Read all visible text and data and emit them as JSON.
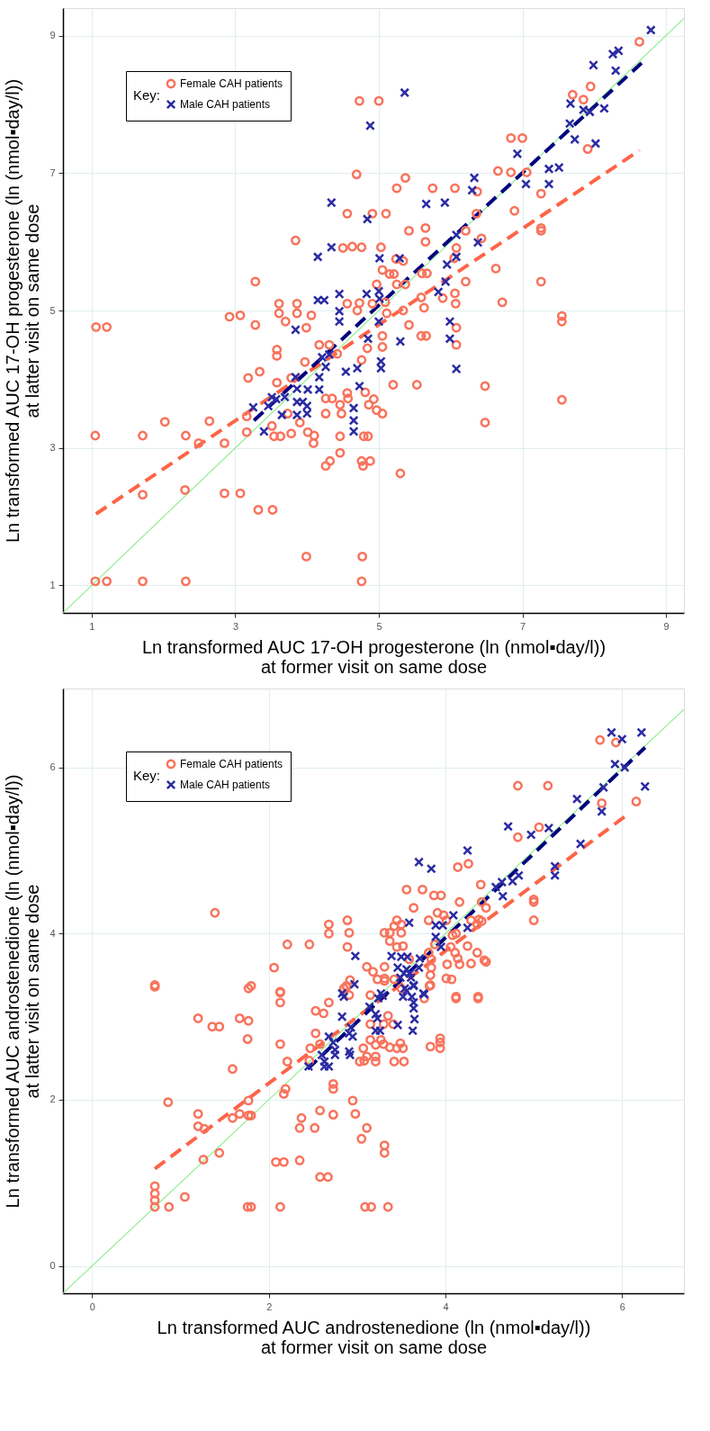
{
  "chart_data": [
    {
      "type": "scatter",
      "xlabel": "Ln transformed AUC 17-OH progesterone (ln (nmol▪day/l))\nat former visit on same dose",
      "ylabel": "Ln transformed AUC 17-OH progesterone (ln (nmol▪day/l))\nat latter visit on same dose",
      "legend_title": "Key:",
      "legend": "top left",
      "grid": true,
      "xlim": [
        0.6,
        9.25
      ],
      "ylim": [
        0.6,
        9.4
      ],
      "xticks": [
        1,
        3,
        5,
        7,
        9
      ],
      "yticks": [
        1,
        3,
        5,
        7,
        9
      ],
      "series": [
        {
          "name": "Female CAH patients",
          "color": "#f8735c",
          "marker": "circle",
          "x": [
            4.73,
            5.0,
            6.84,
            7.0,
            7.7,
            7.85,
            7.95,
            8.63,
            7.91,
            4.69,
            5.37,
            6.66,
            6.84,
            7.06,
            7.26,
            5.25,
            5.75,
            6.06,
            6.37,
            6.36,
            6.89,
            4.56,
            4.91,
            5.1,
            3.84,
            5.42,
            5.65,
            5.65,
            6.21,
            7.26,
            7.26,
            4.5,
            4.63,
            4.76,
            5.03,
            6.08,
            6.43,
            5.24,
            5.34,
            6.05,
            5.05,
            5.15,
            5.21,
            5.6,
            5.67,
            6.63,
            3.28,
            4.97,
            5.25,
            5.37,
            6.21,
            7.26,
            5.59,
            5.89,
            6.06,
            6.07,
            6.72,
            3.61,
            3.86,
            4.56,
            4.73,
            4.91,
            5.09,
            3.61,
            3.86,
            4.06,
            4.7,
            5.34,
            5.63,
            7.55,
            2.92,
            3.07,
            5.11,
            1.06,
            1.21,
            3.28,
            3.7,
            3.99,
            7.55,
            5.42,
            6.08,
            6.08,
            5.59,
            5.66,
            5.05,
            5.05,
            4.17,
            4.31,
            3.58,
            3.58,
            4.84,
            3.97,
            4.42,
            4.76,
            3.34,
            3.18,
            3.58,
            3.78,
            5.2,
            5.53,
            6.48,
            4.56,
            4.81,
            4.57,
            4.26,
            4.35,
            4.86,
            4.46,
            4.93,
            7.55,
            4.97,
            5.05,
            4.26,
            4.48,
            3.73,
            3.16,
            2.64,
            2.02,
            6.48,
            3.9,
            3.51,
            3.16,
            3.78,
            4.01,
            4.1,
            4.46,
            4.79,
            4.85,
            3.54,
            3.63,
            1.05,
            1.71,
            2.31,
            2.49,
            2.85,
            4.09,
            4.46,
            4.32,
            4.26,
            4.76,
            4.88,
            4.78,
            5.3,
            1.71,
            2.3,
            2.85,
            3.07,
            3.32,
            3.52,
            3.99,
            4.77,
            1.05,
            1.21,
            1.71,
            2.31,
            4.76
          ],
          "values": [
            8.05,
            8.05,
            7.51,
            7.51,
            8.14,
            8.07,
            8.26,
            8.91,
            7.35,
            6.98,
            6.93,
            7.03,
            7.01,
            7.01,
            6.7,
            6.78,
            6.78,
            6.78,
            6.73,
            6.41,
            6.45,
            6.41,
            6.41,
            6.41,
            6.02,
            6.16,
            6.2,
            6.0,
            6.16,
            6.2,
            6.16,
            5.91,
            5.93,
            5.92,
            5.92,
            5.91,
            6.05,
            5.75,
            5.72,
            5.76,
            5.59,
            5.53,
            5.53,
            5.54,
            5.54,
            5.61,
            5.42,
            5.38,
            5.38,
            5.38,
            5.42,
            5.42,
            5.19,
            5.18,
            5.25,
            5.1,
            5.12,
            5.1,
            5.1,
            5.1,
            5.11,
            5.1,
            5.12,
            4.96,
            4.96,
            4.93,
            5.0,
            5.0,
            5.04,
            4.92,
            4.91,
            4.93,
            4.96,
            4.76,
            4.76,
            4.79,
            4.84,
            4.75,
            4.84,
            4.79,
            4.75,
            4.5,
            4.63,
            4.63,
            4.63,
            4.47,
            4.5,
            4.5,
            4.43,
            4.34,
            4.45,
            4.25,
            4.37,
            4.28,
            4.11,
            4.02,
            3.95,
            4.02,
            3.92,
            3.92,
            3.9,
            3.8,
            3.81,
            3.72,
            3.72,
            3.72,
            3.63,
            3.63,
            3.71,
            3.7,
            3.55,
            3.5,
            3.5,
            3.5,
            3.5,
            3.46,
            3.39,
            3.38,
            3.37,
            3.37,
            3.32,
            3.23,
            3.21,
            3.23,
            3.18,
            3.17,
            3.17,
            3.17,
            3.17,
            3.17,
            3.18,
            3.18,
            3.18,
            3.07,
            3.07,
            3.07,
            2.93,
            2.81,
            2.74,
            2.81,
            2.81,
            2.74,
            2.63,
            2.32,
            2.39,
            2.34,
            2.34,
            2.1,
            2.1,
            1.42,
            1.42,
            1.06,
            1.06,
            1.06,
            1.06,
            1.06
          ]
        },
        {
          "name": "Male CAH patients",
          "color": "#2b2ba3",
          "marker": "cross",
          "x": [
            8.79,
            8.26,
            8.34,
            7.99,
            8.3,
            5.36,
            4.88,
            7.67,
            7.85,
            7.94,
            8.14,
            7.66,
            7.73,
            8.02,
            6.93,
            7.37,
            7.51,
            7.05,
            7.37,
            6.33,
            6.3,
            4.34,
            5.66,
            5.92,
            4.84,
            6.08,
            4.34,
            4.15,
            5.01,
            5.29,
            5.95,
            6.08,
            6.38,
            5.93,
            5.83,
            4.45,
            4.83,
            5.0,
            5.01,
            4.15,
            4.24,
            4.45,
            4.45,
            3.84,
            4.85,
            5.3,
            5.99,
            5.99,
            6.08,
            5.0,
            5.03,
            5.03,
            4.54,
            4.7,
            4.73,
            4.26,
            4.21,
            4.31,
            4.17,
            4.17,
            3.84,
            3.86,
            4.01,
            3.86,
            3.94,
            4.0,
            4.0,
            3.86,
            3.65,
            3.69,
            3.57,
            3.51,
            3.46,
            3.25,
            3.4,
            4.65,
            4.65,
            4.65
          ],
          "values": [
            9.08,
            8.73,
            8.78,
            8.57,
            8.49,
            8.17,
            7.69,
            8.01,
            7.92,
            7.89,
            7.94,
            7.72,
            7.49,
            7.43,
            7.28,
            7.06,
            7.08,
            6.84,
            6.84,
            6.93,
            6.75,
            6.57,
            6.55,
            6.57,
            6.33,
            6.1,
            5.92,
            5.78,
            5.76,
            5.76,
            5.67,
            5.78,
            5.99,
            5.42,
            5.27,
            5.24,
            5.24,
            5.28,
            5.17,
            5.15,
            5.15,
            4.99,
            4.84,
            4.72,
            4.59,
            4.55,
            4.84,
            4.59,
            4.15,
            4.84,
            4.26,
            4.16,
            4.11,
            4.16,
            3.9,
            4.18,
            4.32,
            4.36,
            4.03,
            3.85,
            4.03,
            3.86,
            3.85,
            3.67,
            3.67,
            3.61,
            3.5,
            3.48,
            3.48,
            3.74,
            3.71,
            3.74,
            3.61,
            3.59,
            3.24,
            3.58,
            3.4,
            3.24
          ]
        },
        {
          "type": "line",
          "color": "#90ee90",
          "line_style": "solid",
          "x": [
            0.6,
            9.25
          ],
          "values": [
            0.6,
            9.25
          ]
        },
        {
          "type": "line",
          "color": "#ff6347",
          "line_style": "dashed",
          "x": [
            1.06,
            8.63
          ],
          "values": [
            2.04,
            7.33
          ]
        },
        {
          "type": "line",
          "color": "#00007f",
          "line_style": "dashed",
          "x": [
            3.26,
            8.69
          ],
          "values": [
            3.4,
            8.63
          ]
        }
      ]
    },
    {
      "type": "scatter",
      "xlabel": "Ln transformed AUC androstenedione (ln (nmol▪day/l))\nat former visit on same dose",
      "ylabel": "Ln transformed AUC androstenedione (ln (nmol▪day/l))\nat latter visit on same dose",
      "legend_title": "Key:",
      "legend": "top left",
      "grid": true,
      "xlim": [
        -0.33,
        6.7
      ],
      "ylim": [
        -0.33,
        6.95
      ],
      "xticks": [
        0,
        2,
        4,
        6
      ],
      "yticks": [
        0,
        2,
        4,
        6
      ],
      "series": [
        {
          "name": "Female CAH patients",
          "color": "#f8735c",
          "marker": "circle",
          "x": [
            5.75,
            5.93,
            4.82,
            5.16,
            5.77,
            6.16,
            5.06,
            4.82,
            4.14,
            4.26,
            4.4,
            3.56,
            3.74,
            3.87,
            3.95,
            4.16,
            4.41,
            4.46,
            5.0,
            5.0,
            5.0,
            3.64,
            3.91,
            3.98,
            3.81,
            4.01,
            4.29,
            4.38,
            4.41,
            4.36,
            1.39,
            2.68,
            2.89,
            3.45,
            3.42,
            3.5,
            3.31,
            3.37,
            3.5,
            2.68,
            2.91,
            2.21,
            2.46,
            2.89,
            3.37,
            3.45,
            3.52,
            3.88,
            4.08,
            4.12,
            4.06,
            4.25,
            3.81,
            4.11,
            4.14,
            4.36,
            4.44,
            4.46,
            3.84,
            3.84,
            4.02,
            4.16,
            4.29,
            3.59,
            3.31,
            3.11,
            3.18,
            3.23,
            3.31,
            3.42,
            2.06,
            2.92,
            2.88,
            2.85,
            3.83,
            3.83,
            4.01,
            4.07,
            4.37,
            4.12,
            0.71,
            0.71,
            1.77,
            1.8,
            2.13,
            3.5,
            2.13,
            2.13,
            1.2,
            1.67,
            1.77,
            1.36,
            1.44,
            1.76,
            2.13,
            2.53,
            2.62,
            2.68,
            2.88,
            2.91,
            3.15,
            3.31,
            3.35,
            3.15,
            3.3,
            3.41,
            2.53,
            3.15,
            3.27,
            3.21,
            3.3,
            3.37,
            3.45,
            3.49,
            3.52,
            3.83,
            3.94,
            3.94,
            3.94,
            3.76,
            3.82,
            4.12,
            4.37,
            3.07,
            2.47,
            2.58,
            2.21,
            3.03,
            3.08,
            3.11,
            3.21,
            3.21,
            3.42,
            3.53,
            2.46,
            1.59,
            2.73,
            2.73,
            2.19,
            2.17,
            0.86,
            1.77,
            2.95,
            1.2,
            1.67,
            1.77,
            1.8,
            1.59,
            2.37,
            2.58,
            2.73,
            2.98,
            1.2,
            1.27,
            2.35,
            2.52,
            3.11,
            3.05,
            3.31,
            3.31,
            1.26,
            1.44,
            2.08,
            2.17,
            2.35,
            2.58,
            2.67,
            0.71,
            0.71,
            0.71,
            0.71,
            0.87,
            1.05,
            1.76,
            1.8,
            2.13,
            3.09,
            3.16,
            3.35
          ],
          "values": [
            6.33,
            6.3,
            5.78,
            5.78,
            5.57,
            5.59,
            5.28,
            5.16,
            4.8,
            4.84,
            4.59,
            4.53,
            4.53,
            4.46,
            4.46,
            4.38,
            4.38,
            4.31,
            4.41,
            4.38,
            4.16,
            4.31,
            4.25,
            4.22,
            4.16,
            4.16,
            4.16,
            4.17,
            4.15,
            4.11,
            4.25,
            4.11,
            4.16,
            4.16,
            4.09,
            4.11,
            4.01,
            4.01,
            4.01,
            4.0,
            4.01,
            3.87,
            3.87,
            3.84,
            3.91,
            3.84,
            3.85,
            3.87,
            3.98,
            4.0,
            3.84,
            3.85,
            3.77,
            3.77,
            3.7,
            3.77,
            3.68,
            3.66,
            3.69,
            3.59,
            3.63,
            3.63,
            3.64,
            3.69,
            3.6,
            3.6,
            3.54,
            3.45,
            3.46,
            3.45,
            3.59,
            3.44,
            3.37,
            3.34,
            3.5,
            3.38,
            3.46,
            3.45,
            3.24,
            3.24,
            3.38,
            3.36,
            3.34,
            3.37,
            3.3,
            3.34,
            3.29,
            3.17,
            2.98,
            2.98,
            2.95,
            2.88,
            2.88,
            2.73,
            2.67,
            3.07,
            3.04,
            3.17,
            3.36,
            3.26,
            3.26,
            3.43,
            3.01,
            2.91,
            2.91,
            2.91,
            2.8,
            2.72,
            2.72,
            2.66,
            2.67,
            2.63,
            2.62,
            2.68,
            2.62,
            2.64,
            2.74,
            2.69,
            2.62,
            3.22,
            3.37,
            3.22,
            3.22,
            2.62,
            2.62,
            2.67,
            2.46,
            2.46,
            2.47,
            2.52,
            2.52,
            2.46,
            2.46,
            2.46,
            2.47,
            2.37,
            2.19,
            2.13,
            2.13,
            2.07,
            1.97,
            1.99,
            1.99,
            1.83,
            1.83,
            1.81,
            1.81,
            1.78,
            1.78,
            1.87,
            1.82,
            1.83,
            1.68,
            1.65,
            1.66,
            1.66,
            1.66,
            1.53,
            1.45,
            1.36,
            1.28,
            1.36,
            1.25,
            1.25,
            1.27,
            1.07,
            1.07,
            0.96,
            0.87,
            0.79,
            0.71,
            0.71,
            0.83,
            0.71,
            0.71,
            0.71,
            0.71,
            0.71,
            0.71
          ]
        },
        {
          "name": "Male CAH patients",
          "color": "#2b2ba3",
          "marker": "cross",
          "x": [
            5.88,
            6.0,
            6.22,
            5.92,
            6.03,
            5.79,
            6.26,
            5.49,
            5.77,
            4.71,
            4.97,
            5.17,
            5.53,
            4.25,
            3.7,
            3.84,
            5.24,
            5.24,
            4.57,
            4.64,
            4.76,
            4.83,
            4.65,
            4.09,
            3.89,
            3.97,
            4.25,
            3.89,
            3.59,
            3.95,
            2.98,
            3.39,
            3.5,
            3.57,
            3.71,
            3.46,
            3.56,
            3.53,
            3.6,
            3.7,
            3.49,
            3.61,
            3.64,
            2.97,
            3.54,
            3.75,
            2.83,
            3.27,
            2.85,
            3.29,
            3.24,
            3.64,
            3.76,
            3.56,
            3.52,
            3.62,
            3.64,
            3.64,
            2.83,
            3.14,
            3.21,
            3.23,
            3.65,
            3.63,
            3.46,
            3.21,
            3.26,
            2.93,
            2.91,
            2.95,
            2.91,
            2.92,
            2.68,
            2.73,
            2.75,
            2.75,
            2.6,
            2.63,
            2.68,
            2.63,
            2.45
          ],
          "values": [
            6.42,
            6.34,
            6.42,
            6.04,
            6.0,
            5.76,
            5.77,
            5.62,
            5.47,
            5.29,
            5.19,
            5.27,
            5.08,
            5.0,
            4.86,
            4.78,
            4.81,
            4.7,
            4.56,
            4.62,
            4.63,
            4.7,
            4.45,
            4.22,
            4.1,
            4.1,
            4.07,
            3.96,
            4.13,
            3.84,
            3.73,
            3.73,
            3.72,
            3.72,
            3.7,
            3.59,
            3.57,
            3.52,
            3.52,
            3.59,
            3.47,
            3.47,
            3.38,
            3.39,
            3.34,
            3.28,
            3.28,
            3.28,
            3.24,
            3.25,
            3.22,
            3.37,
            3.27,
            3.31,
            3.24,
            3.24,
            3.17,
            3.1,
            3.0,
            3.12,
            3.03,
            2.98,
            2.97,
            2.83,
            2.9,
            2.83,
            2.83,
            2.87,
            2.8,
            2.76,
            2.58,
            2.54,
            2.76,
            2.69,
            2.6,
            2.54,
            2.54,
            2.46,
            2.4,
            2.4,
            2.4
          ]
        },
        {
          "type": "line",
          "color": "#90ee90",
          "line_style": "solid",
          "x": [
            -0.33,
            6.7
          ],
          "values": [
            -0.33,
            6.7
          ]
        },
        {
          "type": "line",
          "color": "#ff6347",
          "line_style": "dashed",
          "x": [
            0.71,
            6.07
          ],
          "values": [
            1.17,
            5.44
          ]
        },
        {
          "type": "line",
          "color": "#00007f",
          "line_style": "dashed",
          "x": [
            2.44,
            6.26
          ],
          "values": [
            2.37,
            6.24
          ]
        }
      ]
    }
  ]
}
